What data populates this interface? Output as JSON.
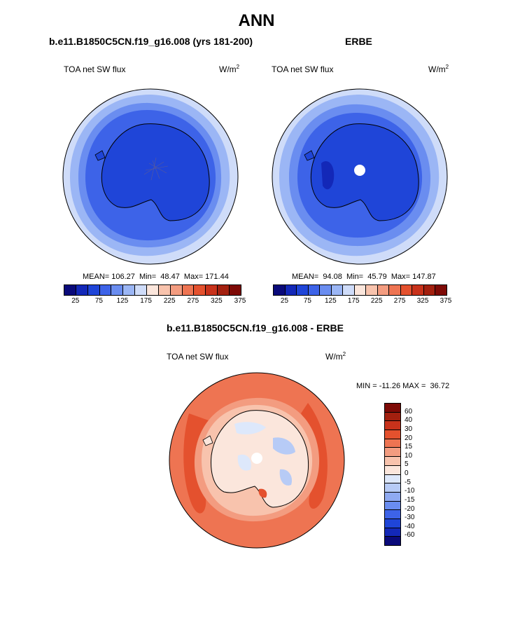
{
  "title": "ANN",
  "panel_left": {
    "title": "b.e11.B1850C5CN.f19_g16.008 (yrs 181-200)",
    "variable": "TOA net SW flux",
    "units": "W/m",
    "units_exp": "2",
    "stats": "MEAN= 106.27  Min=  48.47  Max= 171.44",
    "mean": 106.27,
    "min": 48.47,
    "max": 171.44
  },
  "panel_right": {
    "title": "ERBE",
    "variable": "TOA net SW flux",
    "units": "W/m",
    "units_exp": "2",
    "stats": "MEAN=  94.08  Min=  45.79  Max= 147.87",
    "mean": 94.08,
    "min": 45.79,
    "max": 147.87
  },
  "panel_diff": {
    "title": "b.e11.B1850C5CN.f19_g16.008 - ERBE",
    "variable": "TOA net SW flux",
    "units": "W/m",
    "units_exp": "2",
    "stats": "MIN = -11.26 MAX =  36.72",
    "min": -11.26,
    "max": 36.72
  },
  "colorbar_abs": {
    "ticks": [
      "25",
      "75",
      "125",
      "175",
      "225",
      "275",
      "325",
      "375"
    ],
    "colors": [
      "#0a0a7a",
      "#1328b8",
      "#1f45d8",
      "#3d63e8",
      "#6a8df0",
      "#9bb6f5",
      "#cfdcf9",
      "#fbe6dc",
      "#f8c3ad",
      "#f39c80",
      "#ee7452",
      "#e4512e",
      "#c8321b",
      "#a3200f",
      "#7e0a06"
    ]
  },
  "colorbar_diff": {
    "ticks": [
      "60",
      "40",
      "30",
      "20",
      "15",
      "10",
      "5",
      "0",
      "-5",
      "-10",
      "-15",
      "-20",
      "-30",
      "-40",
      "-60"
    ],
    "colors": [
      "#7e0a06",
      "#a3200f",
      "#c8321b",
      "#e4512e",
      "#ee7452",
      "#f39c80",
      "#f8c3ad",
      "#fbe6dc",
      "#dde8fb",
      "#b7cbf6",
      "#8faaf2",
      "#6a8df0",
      "#3d63e8",
      "#1f45d8",
      "#1328b8",
      "#0a0a7a"
    ]
  },
  "map_colors": {
    "abs_ring1": "#cfdcf9",
    "abs_ring2": "#9bb6f5",
    "abs_ring3": "#6a8df0",
    "abs_ring4": "#3d63e8",
    "abs_land": "#1f45d8",
    "diff_ocean": "#ee7452",
    "diff_mid": "#f8c3ad",
    "diff_inner": "#fbe6dc",
    "diff_land": "#dde8fb",
    "diff_land2": "#b7cbf6"
  }
}
